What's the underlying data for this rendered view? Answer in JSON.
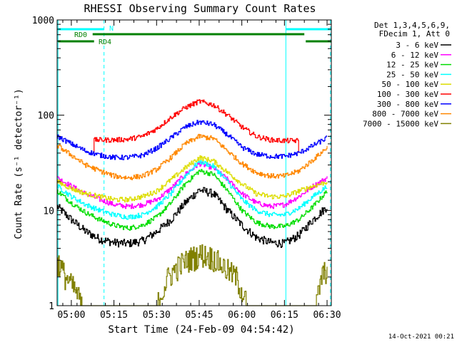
{
  "chart_data": {
    "type": "line",
    "title": "RHESSI Observing Summary Count Rates",
    "ylabel": "Count Rate (s⁻¹ detector⁻¹)",
    "xlabel": "Start Time (24-Feb-09 04:54:42)",
    "y_scale": "log",
    "ylim": [
      1,
      1000
    ],
    "y_ticks": [
      {
        "v": 1,
        "label": "1"
      },
      {
        "v": 10,
        "label": "10"
      },
      {
        "v": 100,
        "label": "100"
      },
      {
        "v": 1000,
        "label": "1000"
      }
    ],
    "xlim_minutes": [
      295.0,
      391.5
    ],
    "x_ticks": [
      {
        "m": 300,
        "label": "05:00"
      },
      {
        "m": 315,
        "label": "05:15"
      },
      {
        "m": 330,
        "label": "05:30"
      },
      {
        "m": 345,
        "label": "05:45"
      },
      {
        "m": 360,
        "label": "06:00"
      },
      {
        "m": 375,
        "label": "06:15"
      },
      {
        "m": 390,
        "label": "06:30"
      }
    ],
    "legend": {
      "header": [
        "Det 1,3,4,5,6,9,",
        "FDecim 1, Att 0"
      ],
      "position": "right"
    },
    "series": [
      {
        "name": "3 - 6 keV",
        "color": "#000000",
        "x": [
          295,
          300,
          305,
          310,
          315,
          320,
          325,
          330,
          335,
          340,
          345,
          350,
          355,
          360,
          365,
          370,
          375,
          380,
          385,
          390
        ],
        "values": [
          11,
          8,
          6,
          5,
          4.6,
          4.5,
          4.8,
          6,
          8,
          12,
          16.5,
          15,
          10,
          7,
          5.2,
          4.6,
          4.5,
          5.5,
          8,
          11
        ]
      },
      {
        "name": "6 - 12 keV",
        "color": "#ff00ff",
        "x": [
          295,
          300,
          305,
          310,
          315,
          320,
          325,
          330,
          335,
          340,
          345,
          350,
          355,
          360,
          365,
          370,
          375,
          380,
          385,
          390
        ],
        "values": [
          22,
          18,
          15,
          13,
          11.5,
          11,
          11.5,
          13,
          17,
          24,
          31,
          28,
          21,
          15,
          12,
          11,
          11.5,
          14,
          18,
          22
        ]
      },
      {
        "name": "12 - 25 keV",
        "color": "#00dd00",
        "x": [
          295,
          300,
          305,
          310,
          315,
          320,
          325,
          330,
          335,
          340,
          345,
          350,
          355,
          360,
          365,
          370,
          375,
          380,
          385,
          390
        ],
        "values": [
          16,
          12,
          9.5,
          8,
          7,
          6.5,
          7,
          8.5,
          12,
          19,
          26,
          24,
          16,
          10,
          7.5,
          6.8,
          6.8,
          8,
          11,
          16
        ]
      },
      {
        "name": "25 - 50 keV",
        "color": "#00ffff",
        "x": [
          295,
          300,
          305,
          310,
          315,
          320,
          325,
          330,
          335,
          340,
          345,
          350,
          355,
          360,
          365,
          370,
          375,
          380,
          385,
          390
        ],
        "values": [
          18,
          14,
          11.5,
          10,
          9,
          8.5,
          9,
          11,
          15,
          23,
          33,
          29,
          20,
          13,
          10,
          9,
          9,
          10.5,
          14,
          18
        ]
      },
      {
        "name": "50 - 100 keV",
        "color": "#dddd00",
        "x": [
          295,
          300,
          305,
          310,
          315,
          320,
          325,
          330,
          335,
          340,
          345,
          350,
          355,
          360,
          365,
          370,
          375,
          380,
          385,
          390
        ],
        "values": [
          20,
          17,
          15,
          14,
          13,
          13,
          14,
          16,
          21,
          28,
          36,
          33,
          25,
          19,
          15,
          14,
          14,
          16,
          18,
          20
        ]
      },
      {
        "name": "100 - 300 keV",
        "color": "#ff0000",
        "x": [
          308,
          310,
          315,
          320,
          325,
          330,
          335,
          340,
          345,
          350,
          355,
          360,
          365,
          370,
          375,
          380
        ],
        "values": [
          55,
          55,
          55,
          56,
          60,
          72,
          95,
          120,
          140,
          128,
          100,
          75,
          60,
          55,
          54,
          54
        ]
      },
      {
        "name": "300 - 800 keV",
        "color": "#0000ff",
        "x": [
          295,
          300,
          305,
          310,
          315,
          320,
          325,
          330,
          335,
          340,
          345,
          350,
          355,
          360,
          365,
          370,
          375,
          380,
          385,
          390
        ],
        "values": [
          60,
          50,
          42,
          38,
          36,
          36,
          38,
          45,
          58,
          75,
          85,
          80,
          62,
          46,
          39,
          37,
          37,
          40,
          48,
          58
        ]
      },
      {
        "name": "800 - 7000 keV",
        "color": "#ff8800",
        "x": [
          295,
          300,
          305,
          310,
          315,
          320,
          325,
          330,
          335,
          340,
          345,
          350,
          355,
          360,
          365,
          370,
          375,
          380,
          385,
          390
        ],
        "values": [
          48,
          38,
          30,
          26,
          23,
          22,
          23,
          27,
          36,
          50,
          60,
          57,
          42,
          31,
          25,
          23,
          23,
          26,
          34,
          46
        ]
      },
      {
        "name": "7000 - 15000 keV",
        "color": "#808000",
        "x": [
          295,
          298,
          301,
          304,
          308,
          312,
          316,
          320,
          330,
          334,
          338,
          342,
          346,
          350,
          354,
          358,
          362,
          366,
          370,
          376,
          382,
          386,
          388,
          390
        ],
        "values": [
          3,
          2,
          1.5,
          1,
          1,
          1,
          1,
          1,
          1,
          2,
          2.7,
          3.2,
          3.5,
          3.2,
          2.5,
          2,
          1,
          1,
          1,
          1,
          1,
          1,
          2,
          2.5
        ]
      }
    ],
    "vertical_markers": [
      {
        "m": 295.3,
        "style": "solid"
      },
      {
        "m": 311.5,
        "style": "dashed"
      },
      {
        "m": 375.5,
        "style": "solid"
      },
      {
        "m": 391.2,
        "style": "dashed"
      }
    ],
    "flag_bars": [
      {
        "label": "N",
        "color": "#00ffff",
        "segments": [
          [
            295.3,
            311.5
          ],
          [
            375.5,
            391.5
          ]
        ]
      },
      {
        "label": "RD0",
        "color": "#008000",
        "segments": [
          [
            307.5,
            382.0
          ]
        ]
      },
      {
        "label": "RD4",
        "color": "#008000",
        "segments": [
          [
            295.3,
            308.0
          ],
          [
            382.5,
            391.5
          ]
        ]
      }
    ]
  },
  "footer": {
    "date": "14-Oct-2021 00:21"
  }
}
